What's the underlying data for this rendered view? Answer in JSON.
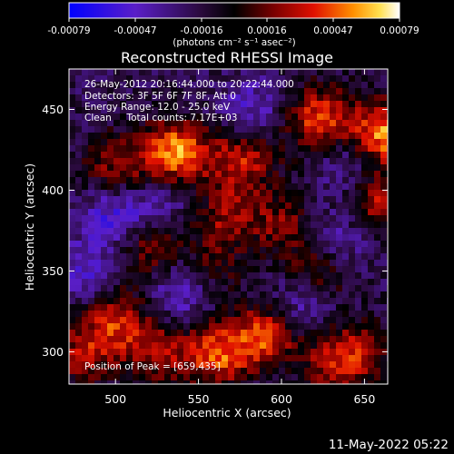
{
  "colorbar": {
    "tick_labels": [
      "-0.00079",
      "-0.00047",
      "-0.00016",
      "0.00016",
      "0.00047",
      "0.00079"
    ],
    "unit_label": "(photons cm⁻² s⁻¹ asec⁻²)"
  },
  "chart_data": {
    "type": "heatmap",
    "title": "Reconstructed RHESSI Image",
    "xlabel": "Heliocentric X (arcsec)",
    "ylabel": "Heliocentric Y (arcsec)",
    "xlim": [
      472,
      664
    ],
    "ylim": [
      280,
      475
    ],
    "x_ticks": [
      500,
      550,
      600,
      650
    ],
    "y_ticks": [
      300,
      350,
      400,
      450
    ],
    "color_range": [
      -0.00079,
      0.00079
    ],
    "colormap": "blue-purple-black-red-orange-yellow-white",
    "peak_position": [
      659,
      435
    ],
    "annotations": [
      "26-May-2012 20:16:44.000 to 20:22:44.000",
      "Detectors: 3F 5F 6F 7F 8F, Att 0",
      "Energy Range: 12.0 - 25.0 keV",
      "Clean     Total counts: 7.17E+03",
      "Position of Peak = [659,435]"
    ],
    "hot_regions": [
      {
        "x": 535,
        "y": 423,
        "level": 0.00079
      },
      {
        "x": 659,
        "y": 435,
        "level": 0.00079
      },
      {
        "x": 620,
        "y": 445,
        "level": 0.0006
      },
      {
        "x": 575,
        "y": 420,
        "level": 0.0005
      },
      {
        "x": 500,
        "y": 415,
        "level": 0.0004
      },
      {
        "x": 565,
        "y": 385,
        "level": 0.0004
      },
      {
        "x": 655,
        "y": 395,
        "level": 0.0005
      },
      {
        "x": 600,
        "y": 380,
        "level": 0.00035
      },
      {
        "x": 520,
        "y": 365,
        "level": 0.0004
      },
      {
        "x": 620,
        "y": 350,
        "level": 0.0004
      },
      {
        "x": 555,
        "y": 350,
        "level": 0.0003
      },
      {
        "x": 590,
        "y": 310,
        "level": 0.0007
      },
      {
        "x": 560,
        "y": 300,
        "level": 0.0006
      },
      {
        "x": 500,
        "y": 320,
        "level": 0.0005
      },
      {
        "x": 525,
        "y": 300,
        "level": 0.0004
      },
      {
        "x": 640,
        "y": 300,
        "level": 0.0005
      },
      {
        "x": 480,
        "y": 300,
        "level": 0.0004
      },
      {
        "x": 620,
        "y": 290,
        "level": 0.0003
      }
    ],
    "cold_regions": [
      {
        "x": 500,
        "y": 385,
        "level": -0.0004
      },
      {
        "x": 540,
        "y": 340,
        "level": -0.0004
      },
      {
        "x": 610,
        "y": 330,
        "level": -0.00035
      },
      {
        "x": 630,
        "y": 370,
        "level": -0.0003
      },
      {
        "x": 480,
        "y": 350,
        "level": -0.0003
      },
      {
        "x": 580,
        "y": 450,
        "level": -0.0003
      },
      {
        "x": 640,
        "y": 415,
        "level": -0.0003
      },
      {
        "x": 530,
        "y": 395,
        "level": -0.00025
      },
      {
        "x": 600,
        "y": 295,
        "level": -0.0002
      }
    ]
  },
  "footer": {
    "timestamp": "11-May-2022 05:22"
  }
}
